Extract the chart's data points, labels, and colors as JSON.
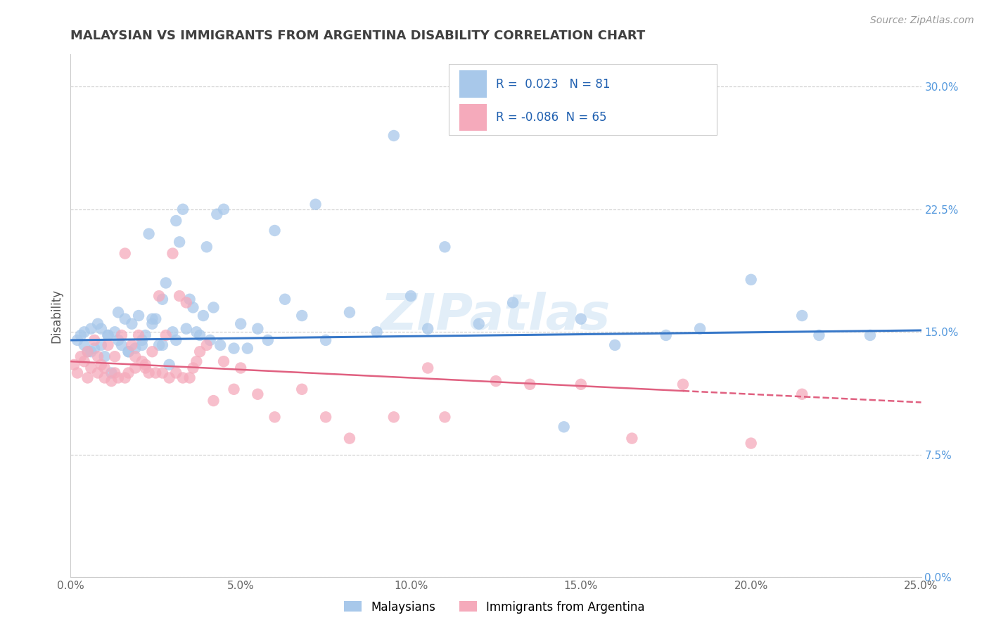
{
  "title": "MALAYSIAN VS IMMIGRANTS FROM ARGENTINA DISABILITY CORRELATION CHART",
  "source": "Source: ZipAtlas.com",
  "xlabel_vals": [
    0.0,
    5.0,
    10.0,
    15.0,
    20.0,
    25.0
  ],
  "ylabel_vals": [
    0.0,
    7.5,
    15.0,
    22.5,
    30.0
  ],
  "xlim": [
    0.0,
    25.0
  ],
  "ylim": [
    0.0,
    32.0
  ],
  "ylabel": "Disability",
  "legend_label1": "Malaysians",
  "legend_label2": "Immigrants from Argentina",
  "R1": 0.023,
  "N1": 81,
  "R2": -0.086,
  "N2": 65,
  "blue_color": "#a8c8ea",
  "pink_color": "#f5aabb",
  "blue_line_color": "#3878c8",
  "pink_line_color": "#e06080",
  "background_color": "#ffffff",
  "grid_color": "#cccccc",
  "title_color": "#404040",
  "source_color": "#999999",
  "watermark": "ZIPatlas",
  "blue_line_x0": 0.0,
  "blue_line_y0": 14.5,
  "blue_line_x1": 25.0,
  "blue_line_y1": 15.1,
  "pink_line_x0": 0.0,
  "pink_line_y0": 13.2,
  "pink_line_x1": 22.0,
  "pink_line_y1": 11.0,
  "pink_dash_x0": 18.0,
  "pink_dash_x1": 25.0,
  "malaysian_x": [
    0.2,
    0.3,
    0.4,
    0.5,
    0.6,
    0.7,
    0.8,
    0.9,
    1.0,
    1.1,
    1.2,
    1.3,
    1.4,
    1.5,
    1.6,
    1.7,
    1.8,
    1.9,
    2.0,
    2.1,
    2.2,
    2.3,
    2.4,
    2.5,
    2.6,
    2.7,
    2.8,
    2.9,
    3.0,
    3.1,
    3.2,
    3.3,
    3.4,
    3.5,
    3.6,
    3.7,
    3.8,
    3.9,
    4.0,
    4.1,
    4.2,
    4.3,
    4.4,
    4.5,
    4.8,
    5.0,
    5.2,
    5.5,
    5.8,
    6.0,
    6.3,
    6.8,
    7.2,
    7.5,
    8.2,
    9.0,
    9.5,
    10.0,
    10.5,
    11.0,
    12.0,
    13.0,
    14.5,
    15.0,
    16.0,
    17.5,
    18.5,
    20.0,
    21.5,
    22.0,
    23.5,
    0.4,
    0.6,
    0.9,
    1.1,
    1.4,
    1.7,
    2.1,
    2.4,
    2.7,
    3.1
  ],
  "malaysian_y": [
    14.5,
    14.8,
    15.0,
    13.8,
    15.2,
    14.0,
    15.5,
    14.2,
    13.5,
    14.8,
    12.5,
    15.0,
    14.5,
    14.2,
    15.8,
    13.8,
    15.5,
    14.0,
    16.0,
    14.5,
    14.8,
    21.0,
    15.5,
    15.8,
    14.2,
    17.0,
    18.0,
    13.0,
    15.0,
    14.5,
    20.5,
    22.5,
    15.2,
    17.0,
    16.5,
    15.0,
    14.8,
    16.0,
    20.2,
    14.5,
    16.5,
    22.2,
    14.2,
    22.5,
    14.0,
    15.5,
    14.0,
    15.2,
    14.5,
    21.2,
    17.0,
    16.0,
    22.8,
    14.5,
    16.2,
    15.0,
    27.0,
    17.2,
    15.2,
    20.2,
    15.5,
    16.8,
    9.2,
    15.8,
    14.2,
    14.8,
    15.2,
    18.2,
    16.0,
    14.8,
    14.8,
    14.2,
    13.8,
    15.2,
    14.8,
    16.2,
    13.8,
    14.2,
    15.8,
    14.2,
    21.8
  ],
  "argentina_x": [
    0.1,
    0.2,
    0.3,
    0.4,
    0.5,
    0.6,
    0.7,
    0.8,
    0.9,
    1.0,
    1.1,
    1.2,
    1.3,
    1.4,
    1.5,
    1.6,
    1.7,
    1.8,
    1.9,
    2.0,
    2.1,
    2.2,
    2.3,
    2.4,
    2.5,
    2.6,
    2.7,
    2.8,
    2.9,
    3.0,
    3.1,
    3.2,
    3.3,
    3.4,
    3.5,
    3.6,
    3.7,
    3.8,
    4.0,
    4.2,
    4.5,
    4.8,
    5.0,
    5.5,
    6.0,
    6.8,
    7.5,
    8.2,
    9.5,
    10.5,
    11.0,
    12.5,
    13.5,
    15.0,
    16.5,
    18.0,
    20.0,
    21.5,
    0.5,
    0.8,
    1.0,
    1.3,
    1.6,
    1.9,
    2.2
  ],
  "argentina_y": [
    13.0,
    12.5,
    13.5,
    13.2,
    13.8,
    12.8,
    14.5,
    12.5,
    13.0,
    12.2,
    14.2,
    12.0,
    13.5,
    12.2,
    14.8,
    19.8,
    12.5,
    14.2,
    12.8,
    14.8,
    13.2,
    13.0,
    12.5,
    13.8,
    12.5,
    17.2,
    12.5,
    14.8,
    12.2,
    19.8,
    12.5,
    17.2,
    12.2,
    16.8,
    12.2,
    12.8,
    13.2,
    13.8,
    14.2,
    10.8,
    13.2,
    11.5,
    12.8,
    11.2,
    9.8,
    11.5,
    9.8,
    8.5,
    9.8,
    12.8,
    9.8,
    12.0,
    11.8,
    11.8,
    8.5,
    11.8,
    8.2,
    11.2,
    12.2,
    13.5,
    12.8,
    12.5,
    12.2,
    13.5,
    12.8
  ]
}
